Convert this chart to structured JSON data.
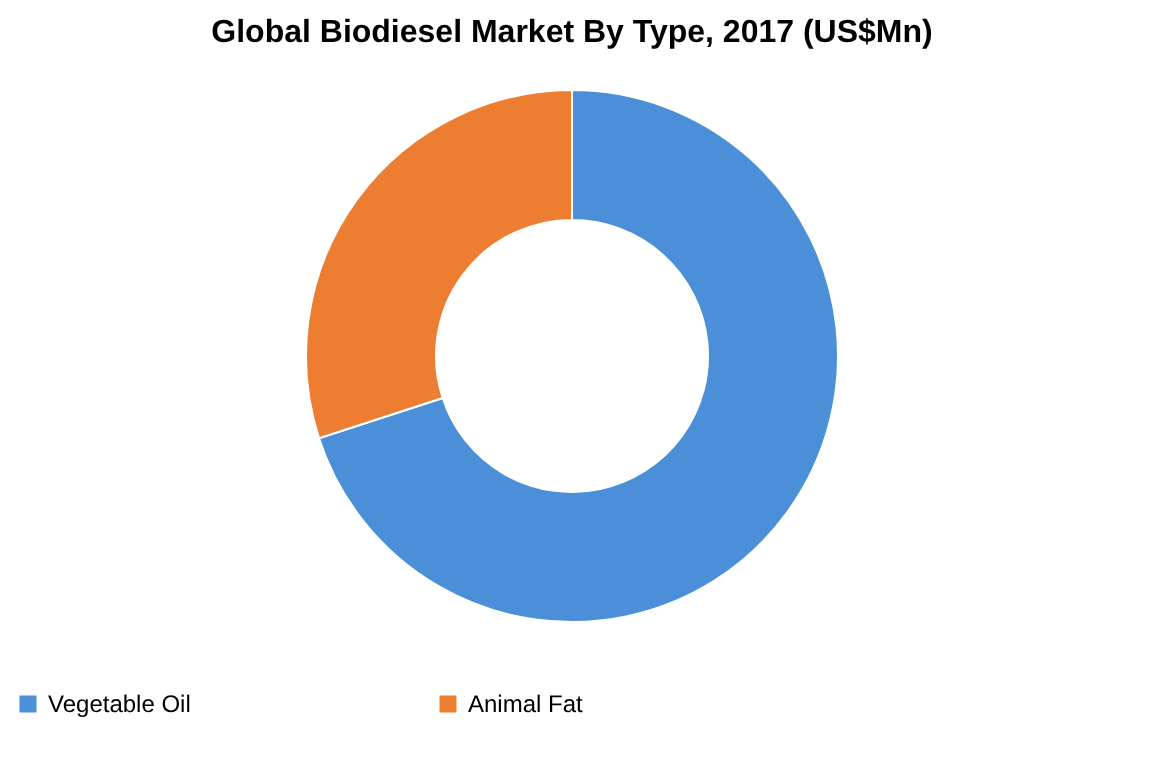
{
  "chart_data": {
    "type": "donut",
    "title": "Global  Biodiesel Market  By Type, 2017 (US$Mn)",
    "categories": [
      "Vegetable Oil",
      "Animal Fat"
    ],
    "values": [
      70,
      30
    ],
    "colors": [
      "#4a8fd8",
      "#ed7d31"
    ],
    "legend": "bottom"
  }
}
